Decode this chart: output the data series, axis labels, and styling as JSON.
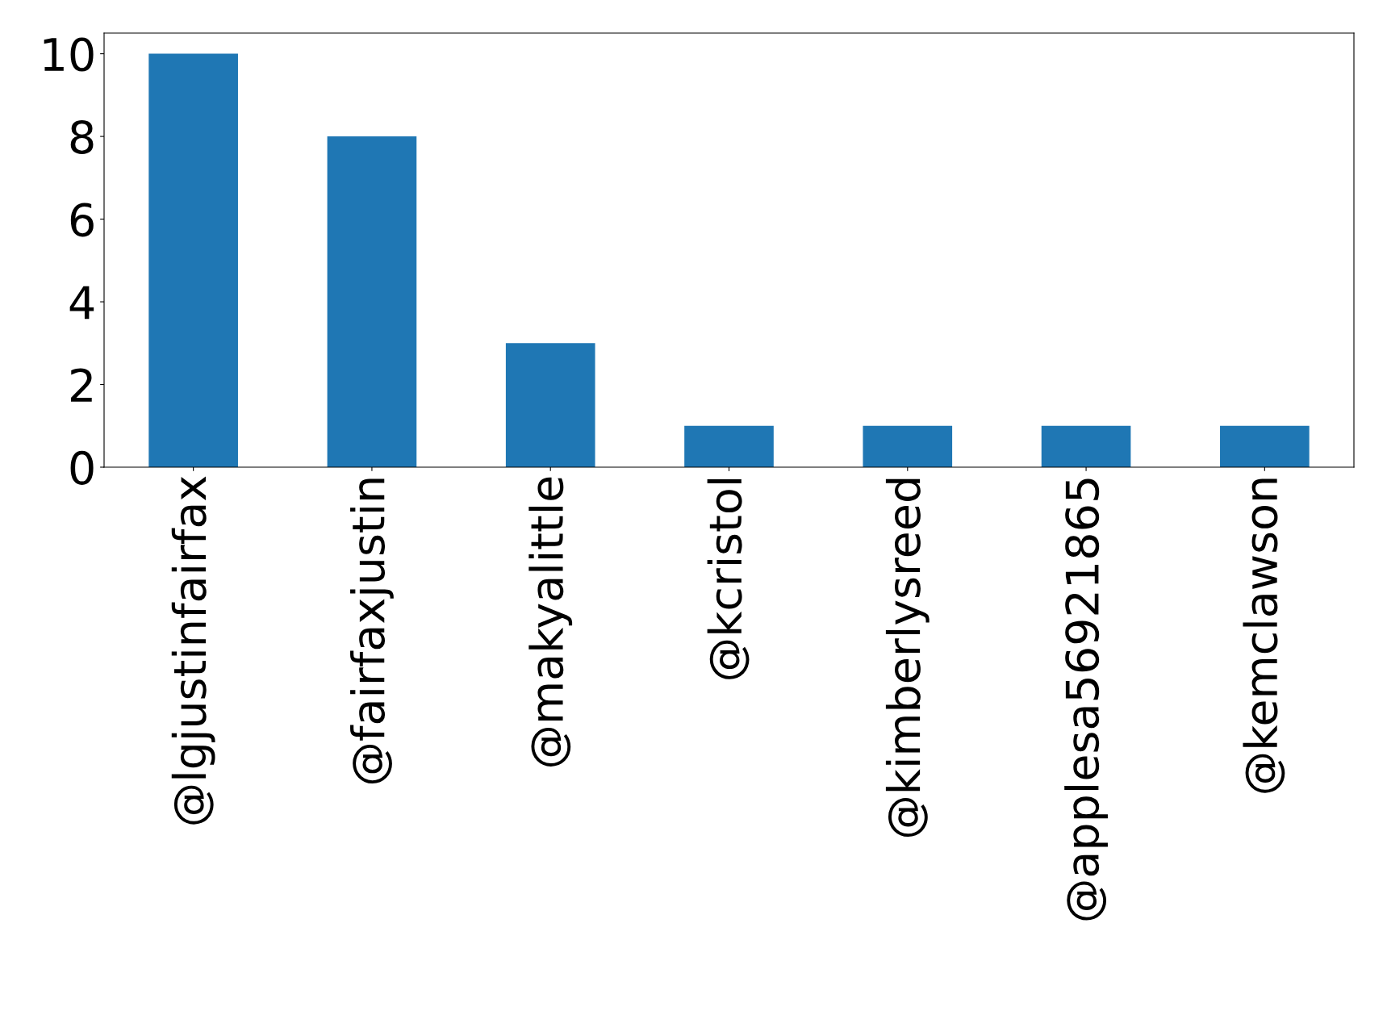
{
  "chart_data": {
    "type": "bar",
    "categories": [
      "@lgjustinfairfax",
      "@fairfaxjustin",
      "@makyalittle",
      "@kcristol",
      "@kimberlysreed",
      "@applesa56921865",
      "@kemclawson"
    ],
    "values": [
      10,
      8,
      3,
      1,
      1,
      1,
      1
    ],
    "color": "#1f77b4",
    "ylim": [
      0,
      10.5
    ],
    "yticks": [
      0,
      2,
      4,
      6,
      8,
      10
    ],
    "grid": false,
    "legend": false
  }
}
